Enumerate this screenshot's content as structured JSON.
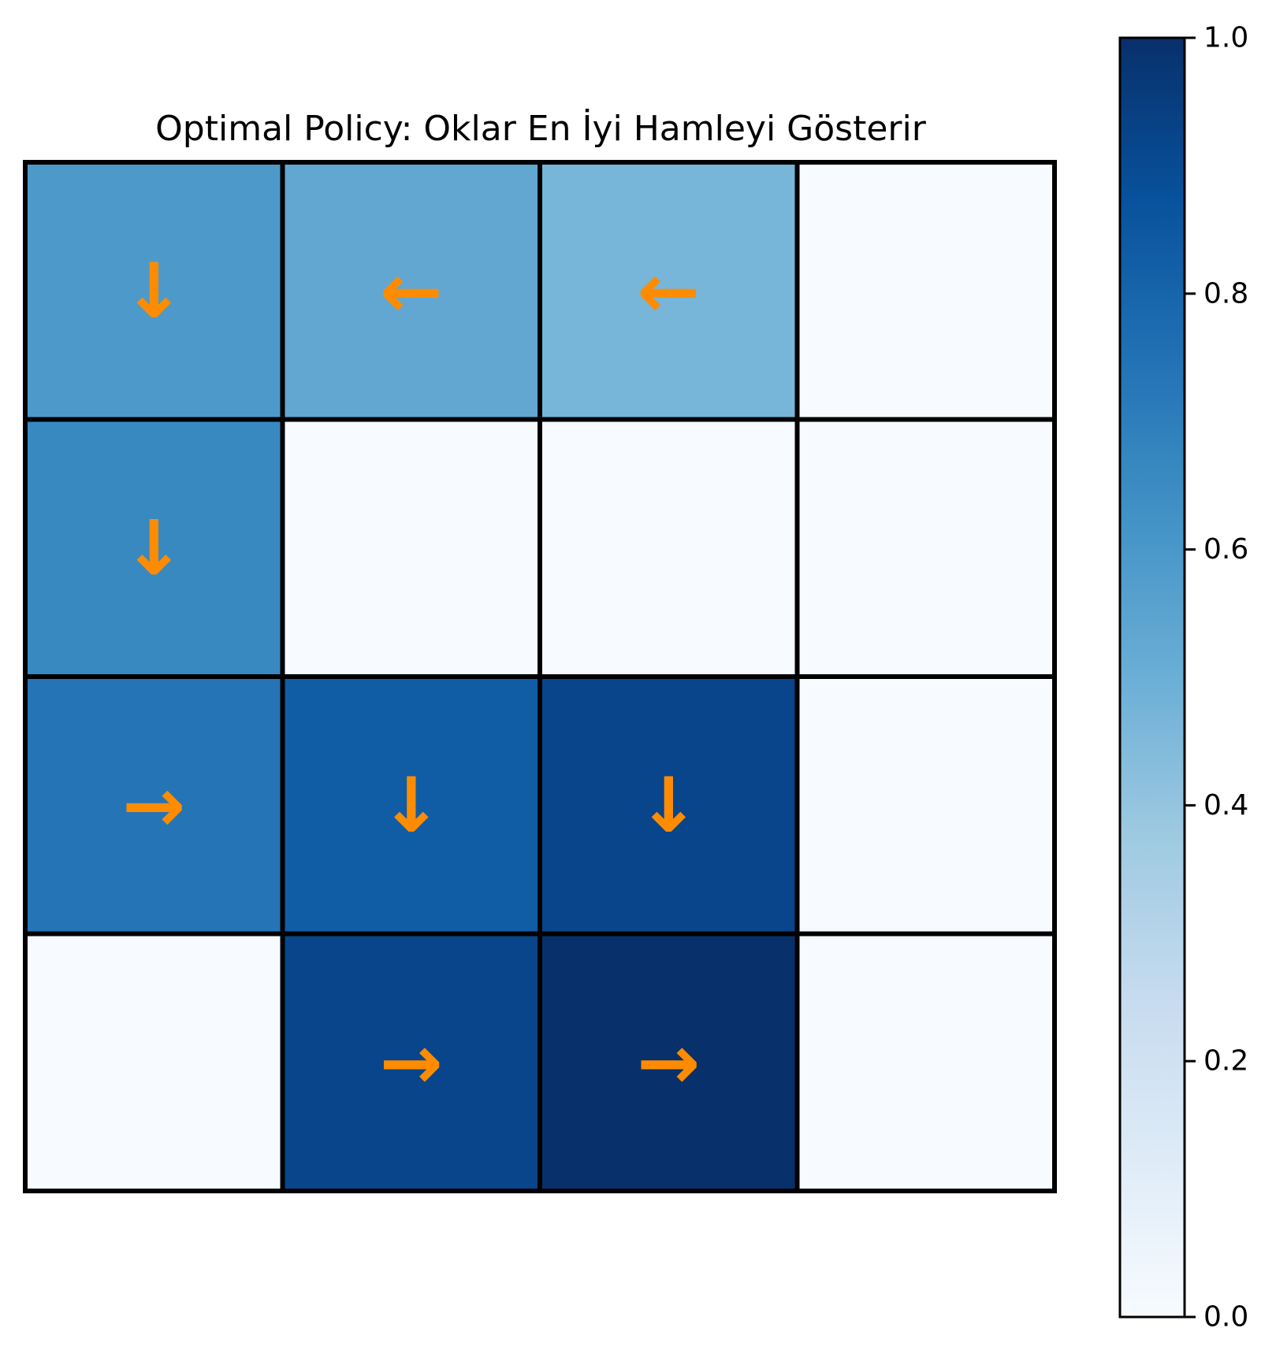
{
  "chart_data": {
    "type": "heatmap",
    "title": "Optimal Policy: Oklar En İyi Hamleyi Gösterir",
    "rows": 4,
    "cols": 4,
    "values": [
      [
        0.59,
        0.53,
        0.47,
        0.0
      ],
      [
        0.66,
        0.0,
        0.0,
        0.0
      ],
      [
        0.74,
        0.83,
        0.92,
        0.0
      ],
      [
        0.0,
        0.92,
        1.0,
        0.0
      ]
    ],
    "arrows": [
      [
        "↓",
        "←",
        "←",
        ""
      ],
      [
        "↓",
        "",
        "",
        ""
      ],
      [
        "→",
        "↓",
        "↓",
        ""
      ],
      [
        "",
        "→",
        "→",
        ""
      ]
    ],
    "arrow_color": "#ff8c00",
    "colormap": "Blues",
    "colorbar": {
      "range": [
        0.0,
        1.0
      ],
      "ticks": [
        0.0,
        0.2,
        0.4,
        0.6,
        0.8,
        1.0
      ],
      "tick_labels": [
        "0.0",
        "0.2",
        "0.4",
        "0.6",
        "0.8",
        "1.0"
      ],
      "placement": "right"
    },
    "grid": true
  }
}
